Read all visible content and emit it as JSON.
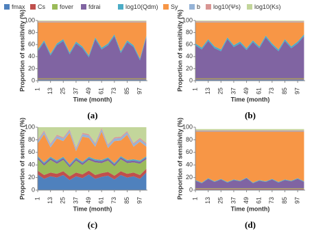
{
  "chart_data": [
    {
      "type": "area",
      "title": "(a)",
      "legend": "top",
      "xlabel": "Time (month)",
      "ylabel": "Proportion of sensitivity (%)",
      "x": [
        1,
        7,
        13,
        19,
        25,
        31,
        37,
        43,
        49,
        55,
        61,
        67,
        73,
        79,
        85,
        91,
        97,
        103
      ],
      "xlim": [
        1,
        104
      ],
      "xticks": [
        1,
        13,
        25,
        37,
        49,
        61,
        73,
        85,
        97
      ],
      "ylim": [
        0,
        100
      ],
      "yticks": [
        0,
        20,
        40,
        60,
        80,
        100
      ],
      "series": [
        {
          "name": "fmax",
          "color": "#4f81bd",
          "values": [
            2,
            2,
            2,
            2,
            2,
            2,
            2,
            2,
            2,
            2,
            2,
            2,
            2,
            2,
            2,
            2,
            2,
            2
          ]
        },
        {
          "name": "Cs",
          "color": "#c0504d",
          "values": [
            1,
            1,
            1,
            1,
            1,
            1,
            1,
            1,
            1,
            1,
            1,
            1,
            1,
            1,
            1,
            1,
            1,
            1
          ]
        },
        {
          "name": "fover",
          "color": "#9bbb59",
          "values": [
            1,
            1,
            1,
            1,
            1,
            1,
            1,
            1,
            1,
            1,
            1,
            1,
            1,
            1,
            1,
            1,
            1,
            1
          ]
        },
        {
          "name": "fdrai",
          "color": "#8064a2",
          "values": [
            45,
            60,
            38,
            55,
            62,
            40,
            58,
            50,
            35,
            65,
            48,
            55,
            70,
            42,
            60,
            52,
            30,
            68
          ]
        },
        {
          "name": "log10(Qdm)",
          "color": "#4bacc6",
          "values": [
            3,
            3,
            3,
            3,
            3,
            3,
            3,
            3,
            3,
            3,
            3,
            3,
            3,
            3,
            3,
            3,
            3,
            3
          ]
        },
        {
          "name": "Sy",
          "color": "#f79646",
          "values": [
            45,
            30,
            52,
            35,
            28,
            50,
            32,
            40,
            55,
            25,
            42,
            35,
            20,
            48,
            30,
            38,
            60,
            22
          ]
        },
        {
          "name": "b",
          "color": "#95b3d7",
          "values": [
            1,
            1,
            1,
            1,
            1,
            1,
            1,
            1,
            1,
            1,
            1,
            1,
            1,
            1,
            1,
            1,
            1,
            1
          ]
        },
        {
          "name": "log10(Ψs)",
          "color": "#d99694",
          "values": [
            1,
            1,
            1,
            1,
            1,
            1,
            1,
            1,
            1,
            1,
            1,
            1,
            1,
            1,
            1,
            1,
            1,
            1
          ]
        },
        {
          "name": "log10(Ks)",
          "color": "#c3d69b",
          "values": [
            1,
            1,
            1,
            1,
            1,
            1,
            1,
            1,
            1,
            1,
            1,
            1,
            1,
            1,
            1,
            1,
            1,
            1
          ]
        }
      ]
    },
    {
      "type": "area",
      "title": "(b)",
      "xlabel": "Time (month)",
      "ylabel": "Proportion of sensitivity (%)",
      "x": [
        1,
        7,
        13,
        19,
        25,
        31,
        37,
        43,
        49,
        55,
        61,
        67,
        73,
        79,
        85,
        91,
        97,
        103
      ],
      "xlim": [
        1,
        104
      ],
      "xticks": [
        1,
        13,
        25,
        37,
        49,
        61,
        73,
        85,
        97
      ],
      "ylim": [
        0,
        100
      ],
      "yticks": [
        0,
        20,
        40,
        60,
        80,
        100
      ],
      "series": [
        {
          "name": "fmax",
          "color": "#4f81bd",
          "values": [
            2,
            2,
            2,
            2,
            2,
            2,
            2,
            2,
            2,
            2,
            2,
            2,
            2,
            2,
            2,
            2,
            2,
            2
          ]
        },
        {
          "name": "Cs",
          "color": "#c0504d",
          "values": [
            1,
            1,
            1,
            1,
            1,
            1,
            1,
            1,
            1,
            1,
            1,
            1,
            1,
            1,
            1,
            1,
            1,
            1
          ]
        },
        {
          "name": "fover",
          "color": "#9bbb59",
          "values": [
            1,
            1,
            1,
            1,
            1,
            1,
            1,
            1,
            1,
            1,
            1,
            1,
            1,
            1,
            1,
            1,
            1,
            1
          ]
        },
        {
          "name": "fdrai",
          "color": "#8064a2",
          "values": [
            55,
            48,
            62,
            50,
            45,
            65,
            52,
            58,
            47,
            60,
            50,
            68,
            55,
            45,
            62,
            50,
            58,
            70
          ]
        },
        {
          "name": "log10(Qdm)",
          "color": "#4bacc6",
          "values": [
            3,
            3,
            3,
            3,
            3,
            3,
            3,
            3,
            3,
            3,
            3,
            3,
            3,
            3,
            3,
            3,
            3,
            3
          ]
        },
        {
          "name": "Sy",
          "color": "#f79646",
          "values": [
            35,
            42,
            28,
            40,
            45,
            25,
            38,
            32,
            43,
            30,
            40,
            22,
            35,
            45,
            28,
            40,
            32,
            20
          ]
        },
        {
          "name": "b",
          "color": "#95b3d7",
          "values": [
            1,
            1,
            1,
            1,
            1,
            1,
            1,
            1,
            1,
            1,
            1,
            1,
            1,
            1,
            1,
            1,
            1,
            1
          ]
        },
        {
          "name": "log10(Ψs)",
          "color": "#d99694",
          "values": [
            1,
            1,
            1,
            1,
            1,
            1,
            1,
            1,
            1,
            1,
            1,
            1,
            1,
            1,
            1,
            1,
            1,
            1
          ]
        },
        {
          "name": "log10(Ks)",
          "color": "#c3d69b",
          "values": [
            1,
            1,
            1,
            1,
            1,
            1,
            1,
            1,
            1,
            1,
            1,
            1,
            1,
            1,
            1,
            1,
            1,
            1
          ]
        }
      ]
    },
    {
      "type": "area",
      "title": "(c)",
      "xlabel": "Time (month)",
      "ylabel": "Proportion of sensitivity (%)",
      "x": [
        1,
        7,
        13,
        19,
        25,
        31,
        37,
        43,
        49,
        55,
        61,
        67,
        73,
        79,
        85,
        91,
        97,
        103
      ],
      "xlim": [
        1,
        104
      ],
      "xticks": [
        1,
        13,
        25,
        37,
        49,
        61,
        73,
        85,
        97
      ],
      "ylim": [
        0,
        100
      ],
      "yticks": [
        0,
        20,
        40,
        60,
        80,
        100
      ],
      "series": [
        {
          "name": "fmax",
          "color": "#4f81bd",
          "values": [
            25,
            18,
            22,
            20,
            24,
            16,
            22,
            19,
            25,
            18,
            21,
            23,
            17,
            24,
            20,
            22,
            18,
            28
          ]
        },
        {
          "name": "Cs",
          "color": "#c0504d",
          "values": [
            6,
            6,
            6,
            6,
            6,
            6,
            6,
            6,
            6,
            6,
            6,
            6,
            6,
            6,
            6,
            6,
            6,
            6
          ]
        },
        {
          "name": "fover",
          "color": "#9bbb59",
          "values": [
            18,
            15,
            20,
            16,
            18,
            14,
            19,
            15,
            17,
            20,
            16,
            18,
            15,
            19,
            17,
            16,
            18,
            15
          ]
        },
        {
          "name": "fdrai",
          "color": "#8064a2",
          "values": [
            3,
            3,
            3,
            3,
            3,
            3,
            3,
            3,
            3,
            3,
            3,
            3,
            3,
            3,
            3,
            3,
            3,
            3
          ]
        },
        {
          "name": "log10(Qdm)",
          "color": "#4bacc6",
          "values": [
            2,
            2,
            2,
            2,
            2,
            2,
            2,
            2,
            2,
            2,
            2,
            2,
            2,
            2,
            2,
            2,
            2,
            2
          ]
        },
        {
          "name": "Sy",
          "color": "#f79646",
          "values": [
            20,
            45,
            15,
            35,
            25,
            50,
            10,
            40,
            30,
            20,
            45,
            15,
            35,
            25,
            40,
            20,
            30,
            15
          ]
        },
        {
          "name": "b",
          "color": "#95b3d7",
          "values": [
            4,
            4,
            4,
            4,
            4,
            4,
            4,
            4,
            4,
            4,
            4,
            4,
            4,
            4,
            4,
            4,
            4,
            4
          ]
        },
        {
          "name": "log10(Ψs)",
          "color": "#d99694",
          "values": [
            2,
            2,
            2,
            2,
            2,
            2,
            2,
            2,
            2,
            2,
            2,
            2,
            2,
            2,
            2,
            2,
            2,
            2
          ]
        },
        {
          "name": "log10(Ks)",
          "color": "#c3d69b",
          "values": [
            20,
            5,
            26,
            12,
            16,
            3,
            32,
            9,
            11,
            25,
            1,
            27,
            16,
            15,
            6,
            25,
            17,
            25
          ]
        }
      ]
    },
    {
      "type": "area",
      "title": "(d)",
      "xlabel": "Time (month)",
      "ylabel": "Proportion of sensitivity (%)",
      "x": [
        1,
        7,
        13,
        19,
        25,
        31,
        37,
        43,
        49,
        55,
        61,
        67,
        73,
        79,
        85,
        91,
        97,
        103
      ],
      "xlim": [
        1,
        104
      ],
      "xticks": [
        1,
        13,
        25,
        37,
        49,
        61,
        73,
        85,
        97
      ],
      "ylim": [
        0,
        100
      ],
      "yticks": [
        0,
        20,
        40,
        60,
        80,
        100
      ],
      "series": [
        {
          "name": "fmax",
          "color": "#4f81bd",
          "values": [
            1,
            1,
            1,
            1,
            1,
            1,
            1,
            1,
            1,
            1,
            1,
            1,
            1,
            1,
            1,
            1,
            1,
            1
          ]
        },
        {
          "name": "Cs",
          "color": "#c0504d",
          "values": [
            1,
            1,
            1,
            1,
            1,
            1,
            1,
            1,
            1,
            1,
            1,
            1,
            1,
            1,
            1,
            1,
            1,
            1
          ]
        },
        {
          "name": "fover",
          "color": "#9bbb59",
          "values": [
            1,
            1,
            1,
            1,
            1,
            1,
            1,
            1,
            1,
            1,
            1,
            1,
            1,
            1,
            1,
            1,
            1,
            1
          ]
        },
        {
          "name": "fdrai",
          "color": "#8064a2",
          "values": [
            12,
            8,
            15,
            10,
            14,
            9,
            13,
            11,
            16,
            8,
            12,
            10,
            14,
            9,
            13,
            11,
            15,
            10
          ]
        },
        {
          "name": "log10(Qdm)",
          "color": "#4bacc6",
          "values": [
            1,
            1,
            1,
            1,
            1,
            1,
            1,
            1,
            1,
            1,
            1,
            1,
            1,
            1,
            1,
            1,
            1,
            1
          ]
        },
        {
          "name": "Sy",
          "color": "#f79646",
          "values": [
            77,
            81,
            74,
            79,
            75,
            80,
            76,
            78,
            73,
            81,
            77,
            79,
            75,
            80,
            76,
            78,
            74,
            79
          ]
        },
        {
          "name": "b",
          "color": "#95b3d7",
          "values": [
            1,
            1,
            1,
            1,
            1,
            1,
            1,
            1,
            1,
            1,
            1,
            1,
            1,
            1,
            1,
            1,
            1,
            1
          ]
        },
        {
          "name": "log10(Ψs)",
          "color": "#d99694",
          "values": [
            1,
            1,
            1,
            1,
            1,
            1,
            1,
            1,
            1,
            1,
            1,
            1,
            1,
            1,
            1,
            1,
            1,
            1
          ]
        },
        {
          "name": "log10(Ks)",
          "color": "#c3d69b",
          "values": [
            2,
            2,
            2,
            2,
            2,
            2,
            2,
            2,
            2,
            2,
            2,
            2,
            2,
            2,
            2,
            2,
            2,
            2
          ]
        }
      ]
    }
  ]
}
